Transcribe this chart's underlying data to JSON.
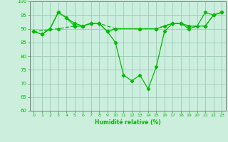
{
  "line1_x": [
    0,
    1,
    2,
    3,
    4,
    5,
    6,
    7,
    8,
    9,
    10,
    11,
    12,
    13,
    14,
    15,
    16,
    17,
    18,
    19,
    20,
    21,
    22,
    23
  ],
  "line1_y": [
    89,
    88,
    90,
    96,
    94,
    92,
    91,
    92,
    92,
    89,
    85,
    73,
    71,
    73,
    68,
    76,
    89,
    92,
    92,
    90,
    91,
    96,
    95,
    96
  ],
  "line2_x": [
    0,
    1,
    2,
    3,
    4,
    5,
    6,
    7,
    8,
    9,
    10,
    13,
    15,
    16,
    17,
    18,
    19,
    21,
    22,
    23
  ],
  "line2_y": [
    89,
    88,
    90,
    96,
    94,
    91,
    91,
    92,
    92,
    89,
    90,
    90,
    90,
    91,
    92,
    92,
    91,
    91,
    95,
    96
  ],
  "line3_x": [
    0,
    3,
    5,
    6,
    7,
    8,
    10,
    13,
    15,
    17,
    18,
    19,
    21,
    22,
    23
  ],
  "line3_y": [
    89,
    90,
    91,
    91,
    92,
    92,
    90,
    90,
    90,
    92,
    92,
    91,
    91,
    95,
    96
  ],
  "line_color": "#00bb00",
  "bg_color": "#cceedd",
  "grid_color": "#99ccbb",
  "xlabel": "Humidité relative (%)",
  "xlim": [
    -0.5,
    23.5
  ],
  "ylim": [
    60,
    100
  ],
  "yticks": [
    60,
    65,
    70,
    75,
    80,
    85,
    90,
    95,
    100
  ],
  "xticks": [
    0,
    1,
    2,
    3,
    4,
    5,
    6,
    7,
    8,
    9,
    10,
    11,
    12,
    13,
    14,
    15,
    16,
    17,
    18,
    19,
    20,
    21,
    22,
    23
  ]
}
